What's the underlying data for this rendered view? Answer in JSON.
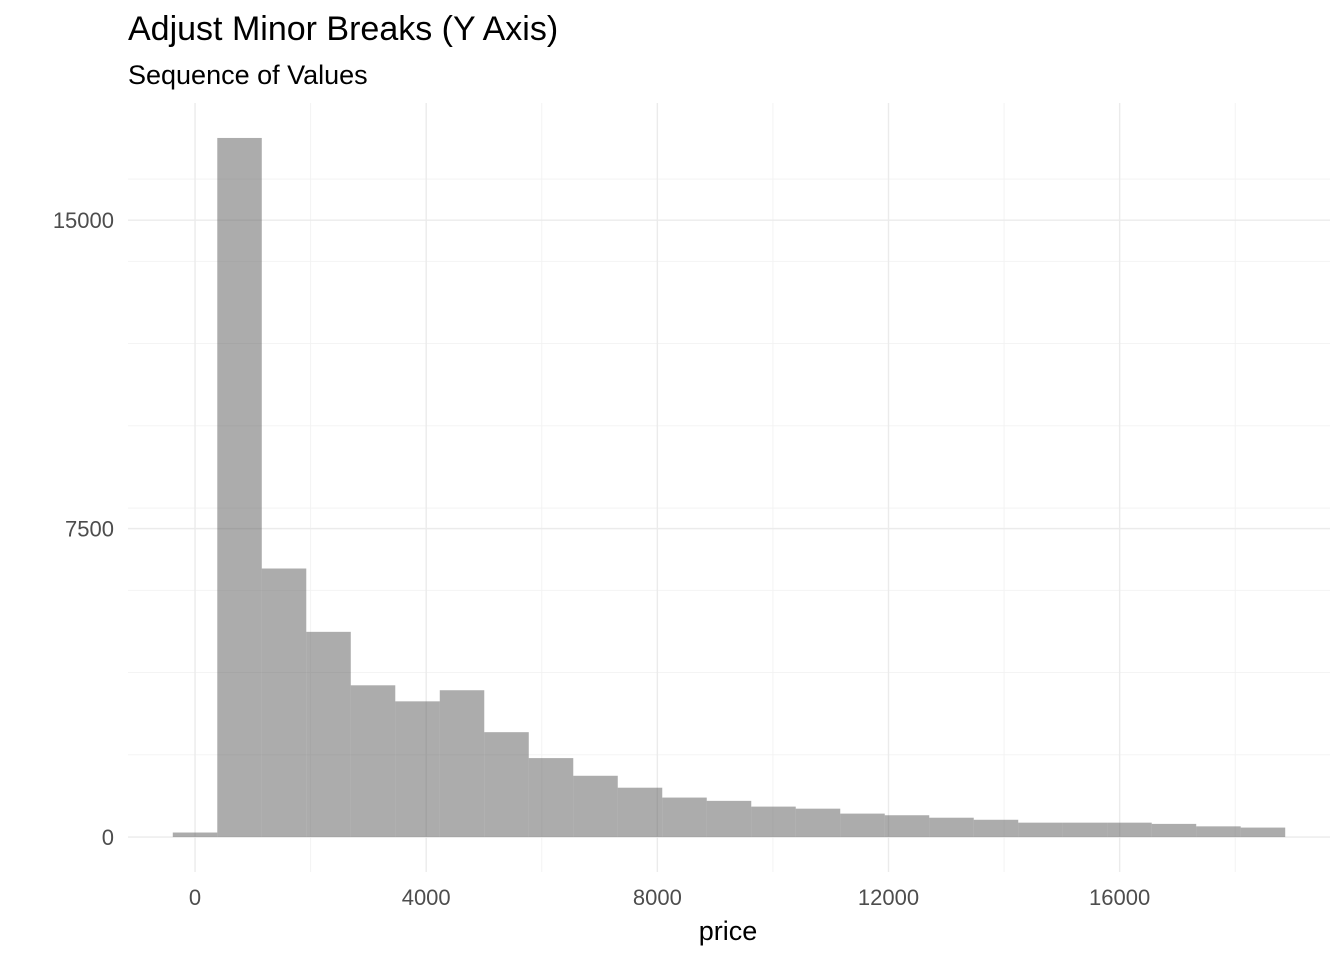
{
  "chart_data": {
    "type": "bar",
    "title": "Adjust Minor Breaks (Y Axis)",
    "subtitle": "Sequence of Values",
    "xlabel": "price",
    "ylabel": "",
    "bin_width": 770,
    "bins": [
      {
        "x0": -385,
        "x1": 385,
        "count": 110
      },
      {
        "x0": 385,
        "x1": 1155,
        "count": 17000
      },
      {
        "x0": 1155,
        "x1": 1925,
        "count": 6530
      },
      {
        "x0": 1925,
        "x1": 2695,
        "count": 4990
      },
      {
        "x0": 2695,
        "x1": 3465,
        "count": 3690
      },
      {
        "x0": 3465,
        "x1": 4235,
        "count": 3300
      },
      {
        "x0": 4235,
        "x1": 5005,
        "count": 3570
      },
      {
        "x0": 5005,
        "x1": 5775,
        "count": 2550
      },
      {
        "x0": 5775,
        "x1": 6545,
        "count": 1920
      },
      {
        "x0": 6545,
        "x1": 7315,
        "count": 1490
      },
      {
        "x0": 7315,
        "x1": 8085,
        "count": 1200
      },
      {
        "x0": 8085,
        "x1": 8855,
        "count": 960
      },
      {
        "x0": 8855,
        "x1": 9625,
        "count": 880
      },
      {
        "x0": 9625,
        "x1": 10395,
        "count": 740
      },
      {
        "x0": 10395,
        "x1": 11165,
        "count": 690
      },
      {
        "x0": 11165,
        "x1": 11935,
        "count": 570
      },
      {
        "x0": 11935,
        "x1": 12705,
        "count": 530
      },
      {
        "x0": 12705,
        "x1": 13475,
        "count": 470
      },
      {
        "x0": 13475,
        "x1": 14245,
        "count": 420
      },
      {
        "x0": 14245,
        "x1": 15015,
        "count": 350
      },
      {
        "x0": 15015,
        "x1": 15785,
        "count": 350
      },
      {
        "x0": 15785,
        "x1": 16555,
        "count": 350
      },
      {
        "x0": 16555,
        "x1": 17325,
        "count": 320
      },
      {
        "x0": 17325,
        "x1": 18095,
        "count": 260
      },
      {
        "x0": 18095,
        "x1": 18865,
        "count": 230
      }
    ],
    "x_ticks": [
      0,
      4000,
      8000,
      12000,
      16000
    ],
    "x_tick_labels": [
      "0",
      "4000",
      "8000",
      "12000",
      "16000"
    ],
    "x_minor_breaks": [
      2000,
      6000,
      10000,
      14000,
      18000
    ],
    "y_ticks": [
      0,
      7500,
      15000
    ],
    "y_tick_labels": [
      "0",
      "7500",
      "15000"
    ],
    "y_minor_breaks": [
      2000,
      4000,
      6000,
      8000,
      10000,
      12000,
      14000,
      16000
    ],
    "xlim": [
      -1160,
      19640
    ],
    "ylim": [
      -850,
      17850
    ],
    "grid": true,
    "bar_color": "#595959",
    "bar_opacity": 0.5
  }
}
